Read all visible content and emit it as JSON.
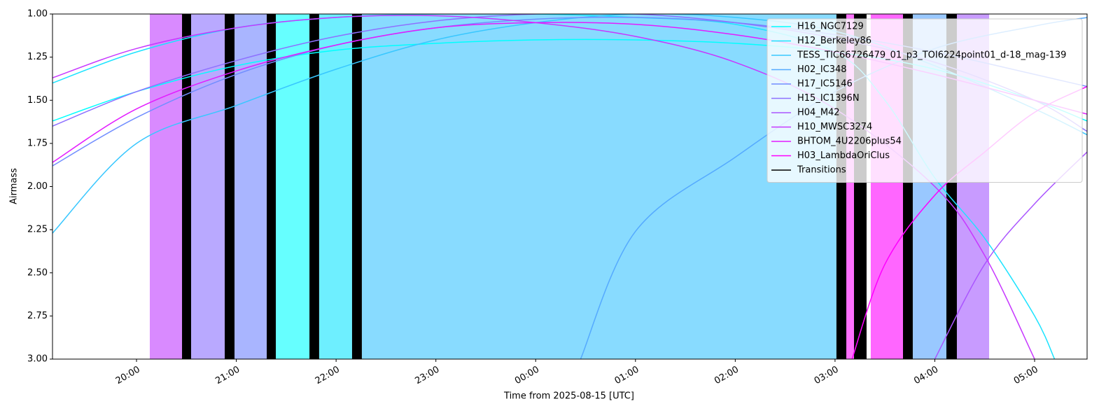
{
  "chart_data": {
    "type": "line",
    "xlabel": "Time from 2025-08-15 [UTC]",
    "ylabel": "Airmass",
    "xlim": [
      19.158,
      29.526
    ],
    "ylim": [
      3,
      1
    ],
    "xticks": [
      {
        "value": 20,
        "label": "20:00"
      },
      {
        "value": 21,
        "label": "21:00"
      },
      {
        "value": 22,
        "label": "22:00"
      },
      {
        "value": 23,
        "label": "23:00"
      },
      {
        "value": 24,
        "label": "00:00"
      },
      {
        "value": 25,
        "label": "01:00"
      },
      {
        "value": 26,
        "label": "02:00"
      },
      {
        "value": 27,
        "label": "03:00"
      },
      {
        "value": 28,
        "label": "04:00"
      },
      {
        "value": 29,
        "label": "05:00"
      }
    ],
    "yticks": [
      {
        "value": 1,
        "label": "1.00"
      },
      {
        "value": 1.25,
        "label": "1.25"
      },
      {
        "value": 1.5,
        "label": "1.50"
      },
      {
        "value": 1.75,
        "label": "1.75"
      },
      {
        "value": 2,
        "label": "2.00"
      },
      {
        "value": 2.25,
        "label": "2.25"
      },
      {
        "value": 2.5,
        "label": "2.50"
      },
      {
        "value": 2.75,
        "label": "2.75"
      },
      {
        "value": 3,
        "label": "3.00"
      }
    ],
    "legend": "upper right",
    "spans": [
      {
        "start": 20.133,
        "end": 20.456,
        "color": "#d98aff"
      },
      {
        "start": 20.547,
        "end": 20.884,
        "color": "#b9a9ff"
      },
      {
        "start": 20.982,
        "end": 21.305,
        "color": "#a9b5ff"
      },
      {
        "start": 21.396,
        "end": 21.733,
        "color": "#66ffff"
      },
      {
        "start": 21.83,
        "end": 22.16,
        "color": "#6eefff"
      },
      {
        "start": 22.258,
        "end": 27.014,
        "color": "#88dbff"
      },
      {
        "start": 27.113,
        "end": 27.19,
        "color": "#ff70ff"
      },
      {
        "start": 27.358,
        "end": 27.681,
        "color": "#ff66ff"
      },
      {
        "start": 27.779,
        "end": 28.116,
        "color": "#99c8ff"
      },
      {
        "start": 28.221,
        "end": 28.544,
        "color": "#c89bff"
      }
    ],
    "transitions": {
      "name": "Transitions",
      "color": "#000000",
      "ranges": [
        [
          20.456,
          20.547
        ],
        [
          20.884,
          20.982
        ],
        [
          21.305,
          21.396
        ],
        [
          21.733,
          21.83
        ],
        [
          22.16,
          22.258
        ],
        [
          27.014,
          27.113
        ],
        [
          27.19,
          27.316
        ],
        [
          27.681,
          27.779
        ],
        [
          28.116,
          28.221
        ]
      ]
    },
    "series": [
      {
        "name": "H16_NGC7129",
        "color": "#00ffff",
        "x": [
          19.158,
          20,
          21,
          22,
          23,
          24,
          25,
          26,
          27,
          28,
          29,
          29.526
        ],
        "values": [
          1.62,
          1.45,
          1.3,
          1.21,
          1.17,
          1.15,
          1.15,
          1.17,
          1.22,
          1.32,
          1.5,
          1.62
        ]
      },
      {
        "name": "H12_Berkeley86",
        "color": "#1ce3ff",
        "x": [
          19.158,
          20,
          21,
          22,
          23,
          24,
          25,
          26,
          27,
          27.5,
          28,
          28.5,
          29,
          29.2
        ],
        "values": [
          1.4,
          1.22,
          1.08,
          1.02,
          1.0,
          1.0,
          1.02,
          1.06,
          1.22,
          1.5,
          1.95,
          2.3,
          2.75,
          3.0
        ]
      },
      {
        "name": "TESS_TIC66726479_01_p3_TOI6224point01_d-18_mag-139",
        "color": "#38c7ff",
        "x": [
          19.158,
          20,
          21,
          22,
          23,
          24,
          25,
          26,
          27,
          28,
          29,
          29.526
        ],
        "values": [
          2.27,
          1.75,
          1.53,
          1.32,
          1.15,
          1.05,
          1.0,
          1.02,
          1.1,
          1.3,
          1.55,
          1.7
        ]
      },
      {
        "name": "H02_IC348",
        "color": "#55aaff",
        "x": [
          24.45,
          25,
          26,
          27,
          28,
          29,
          29.526
        ],
        "values": [
          3.0,
          2.26,
          1.83,
          1.45,
          1.2,
          1.07,
          1.02
        ]
      },
      {
        "name": "H17_IC5146",
        "color": "#718eff",
        "x": [
          19.158,
          20,
          21,
          22,
          23,
          24,
          25,
          26,
          27,
          28,
          29,
          29.526
        ],
        "values": [
          1.88,
          1.6,
          1.35,
          1.18,
          1.08,
          1.03,
          1.02,
          1.05,
          1.12,
          1.22,
          1.35,
          1.42
        ]
      },
      {
        "name": "H15_IC1396N",
        "color": "#8e71ff",
        "x": [
          19.158,
          20,
          21,
          22,
          23,
          24,
          25,
          26,
          27,
          28,
          29,
          29.526
        ],
        "values": [
          1.65,
          1.45,
          1.27,
          1.13,
          1.04,
          1.0,
          1.0,
          1.05,
          1.14,
          1.28,
          1.5,
          1.68
        ]
      },
      {
        "name": "H04_M42",
        "color": "#aa55ff",
        "x": [
          28.0,
          28.5,
          29,
          29.526
        ],
        "values": [
          3.0,
          2.45,
          2.1,
          1.8
        ]
      },
      {
        "name": "H10_MWSC3274",
        "color": "#c738ff",
        "x": [
          19.158,
          20,
          21,
          22,
          23,
          24,
          25,
          26,
          27,
          28,
          28.5,
          29
        ],
        "values": [
          1.37,
          1.2,
          1.08,
          1.02,
          1.01,
          1.05,
          1.13,
          1.28,
          1.55,
          2.0,
          2.4,
          3.0
        ]
      },
      {
        "name": "BHTOM_4U2206plus54",
        "color": "#e31cff",
        "x": [
          19.158,
          20,
          21,
          22,
          23,
          24,
          25,
          26,
          27,
          28,
          29,
          29.526
        ],
        "values": [
          1.86,
          1.55,
          1.33,
          1.18,
          1.08,
          1.05,
          1.06,
          1.12,
          1.22,
          1.35,
          1.5,
          1.58
        ]
      },
      {
        "name": "H03_LambdaOriClus",
        "color": "#ff00ff",
        "x": [
          27.17,
          27.5,
          28,
          28.5,
          29,
          29.526
        ],
        "values": [
          3.0,
          2.45,
          2.05,
          1.8,
          1.57,
          1.42
        ]
      }
    ]
  }
}
